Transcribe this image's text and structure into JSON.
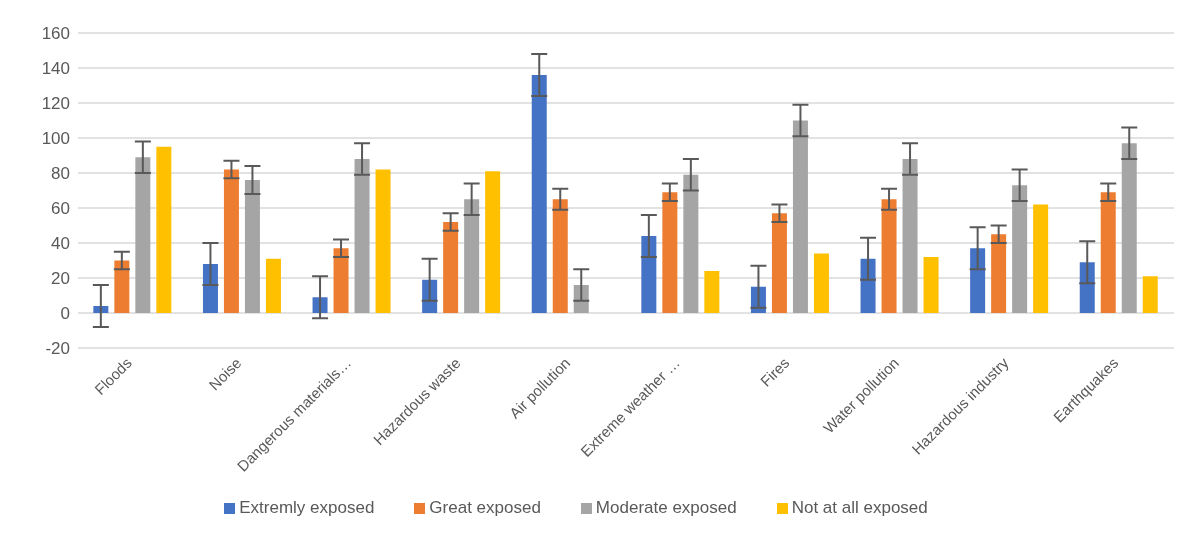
{
  "chart_data": {
    "type": "bar",
    "categories": [
      "Floods",
      "Noise",
      "Dangerous materials…",
      "Hazardous waste",
      "Air pollution",
      "Extreme weather …",
      "Fires",
      "Water pollution",
      "Hazardous industry",
      "Earthquakes"
    ],
    "series": [
      {
        "name": "Extremly exposed",
        "color": "#4472c4",
        "values": [
          4,
          28,
          9,
          19,
          136,
          44,
          15,
          31,
          37,
          29
        ],
        "errors": [
          12,
          12,
          12,
          12,
          12,
          12,
          12,
          12,
          12,
          12
        ]
      },
      {
        "name": "Great exposed",
        "color": "#ed7d31",
        "values": [
          30,
          82,
          37,
          52,
          65,
          69,
          57,
          65,
          45,
          69
        ],
        "errors": [
          5,
          5,
          5,
          5,
          6,
          5,
          5,
          6,
          5,
          5
        ]
      },
      {
        "name": "Moderate exposed",
        "color": "#a5a5a5",
        "values": [
          89,
          76,
          88,
          65,
          16,
          79,
          110,
          88,
          73,
          97
        ],
        "errors": [
          9,
          8,
          9,
          9,
          9,
          9,
          9,
          9,
          9,
          9
        ]
      },
      {
        "name": "Not at all exposed",
        "color": "#ffc000",
        "values": [
          95,
          31,
          82,
          81,
          0,
          24,
          34,
          32,
          62,
          21
        ]
      }
    ],
    "ylim": [
      -20,
      160
    ],
    "yticks": [
      -20,
      0,
      20,
      40,
      60,
      80,
      100,
      120,
      140,
      160
    ],
    "grid": "y",
    "legend": "bottom"
  }
}
